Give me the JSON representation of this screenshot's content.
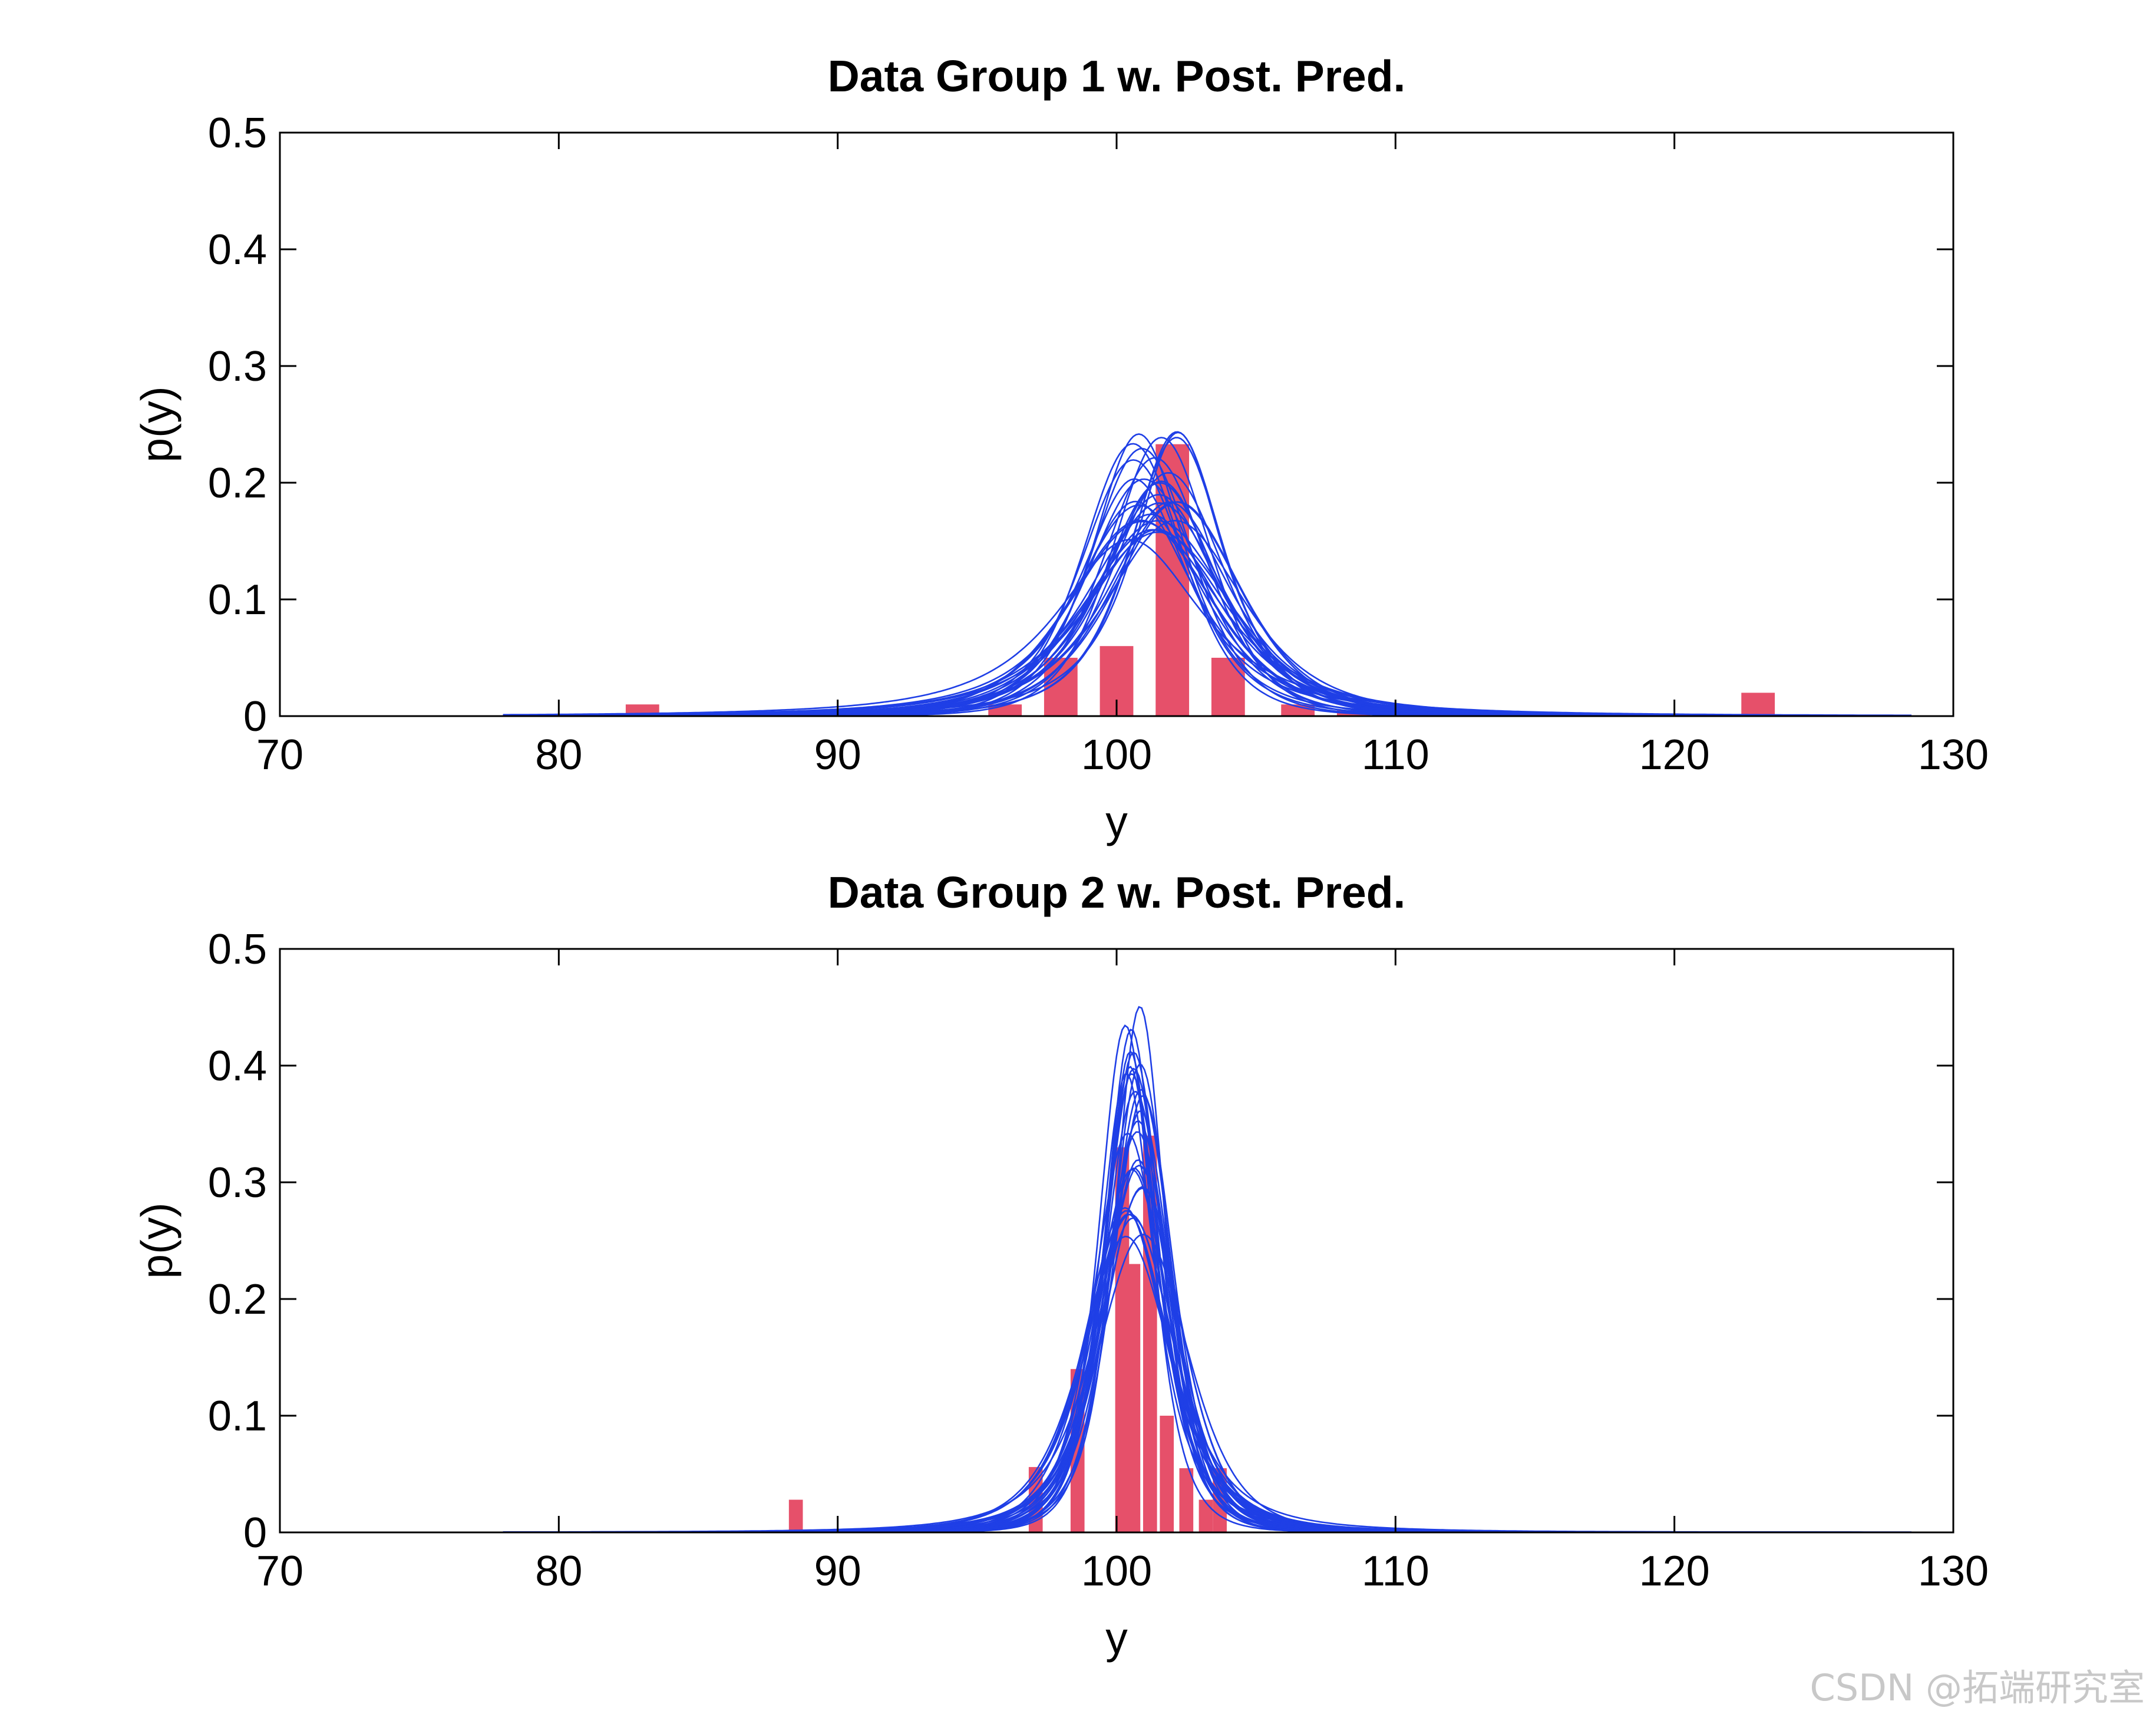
{
  "watermark": "CSDN @拓端研究室",
  "colors": {
    "bars": "#e6506a",
    "curves": "#1f3fe6"
  },
  "chart_data": [
    {
      "type": "bar",
      "title": "Data Group 1 w. Post. Pred.",
      "xlabel": "y",
      "ylabel": "p(y)",
      "xlim": [
        70,
        130
      ],
      "ylim": [
        0,
        0.5
      ],
      "xticks": [
        "70",
        "80",
        "90",
        "100",
        "110",
        "120",
        "130"
      ],
      "yticks": [
        "0",
        "0.1",
        "0.2",
        "0.3",
        "0.4",
        "0.5"
      ],
      "bars": {
        "width": 1.2,
        "x": [
          83,
          96,
          98,
          100,
          102,
          104,
          106.5,
          108.5,
          123
        ],
        "values": [
          0.01,
          0.01,
          0.05,
          0.06,
          0.233,
          0.05,
          0.01,
          0.005,
          0.02
        ]
      },
      "posterior_predictive": {
        "curve_count": 30,
        "center_range": [
          100.4,
          102.3
        ],
        "peak_range": [
          0.15,
          0.25
        ],
        "x_range": [
          78,
          128.5
        ]
      }
    },
    {
      "type": "bar",
      "title": "Data Group 2 w. Post. Pred.",
      "xlabel": "y",
      "ylabel": "p(y)",
      "xlim": [
        70,
        130
      ],
      "ylim": [
        0,
        0.5
      ],
      "xticks": [
        "70",
        "80",
        "90",
        "100",
        "110",
        "120",
        "130"
      ],
      "yticks": [
        "0",
        "0.1",
        "0.2",
        "0.3",
        "0.4",
        "0.5"
      ],
      "bars": {
        "width": 0.5,
        "x": [
          88.5,
          97.1,
          98.6,
          100.2,
          100.6,
          101.2,
          101.8,
          102.5,
          103.2,
          103.7
        ],
        "values": [
          0.028,
          0.056,
          0.14,
          0.33,
          0.23,
          0.34,
          0.1,
          0.055,
          0.028,
          0.055
        ]
      },
      "posterior_predictive": {
        "curve_count": 30,
        "center_range": [
          100.3,
          101.0
        ],
        "peak_range": [
          0.25,
          0.455
        ],
        "x_range": [
          78,
          128.5
        ]
      }
    }
  ]
}
